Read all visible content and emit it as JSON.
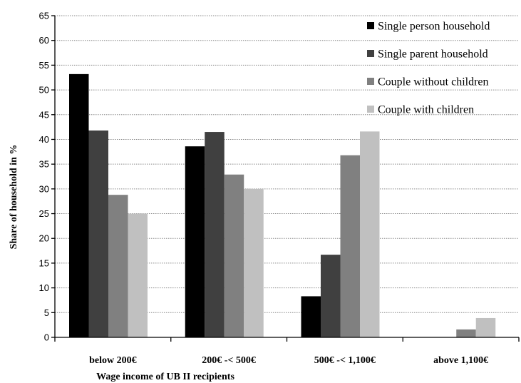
{
  "chart_data": {
    "type": "bar",
    "categories": [
      "below 200€",
      "200€ -< 500€",
      "500€ -< 1,100€",
      "above 1,100€"
    ],
    "series": [
      {
        "name": "Single person household",
        "color": "#000000",
        "values": [
          53.2,
          38.6,
          8.3,
          0
        ]
      },
      {
        "name": "Single parent household",
        "color": "#404040",
        "values": [
          41.8,
          41.5,
          16.7,
          0
        ]
      },
      {
        "name": "Couple without children",
        "color": "#808080",
        "values": [
          28.8,
          32.9,
          36.8,
          1.6
        ]
      },
      {
        "name": "Couple with children",
        "color": "#c0c0c0",
        "values": [
          25.0,
          30.0,
          41.6,
          3.9
        ]
      }
    ],
    "title": "",
    "xlabel": "Wage income of UB II recipients",
    "ylabel": "Share of household in %",
    "ylim": [
      0,
      65
    ],
    "yticks": [
      0,
      5,
      10,
      15,
      20,
      25,
      30,
      35,
      40,
      45,
      50,
      55,
      60,
      65
    ],
    "grid": true,
    "legend_position": "top-right"
  }
}
